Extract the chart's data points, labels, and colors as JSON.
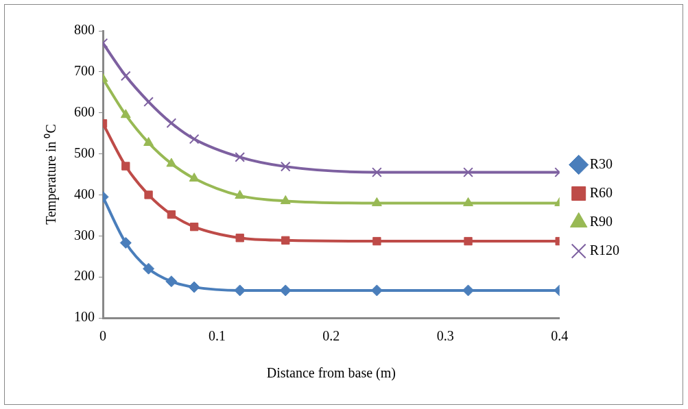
{
  "chart_data": {
    "type": "line",
    "xlabel": "Distance from base (m)",
    "ylabel": "Temperature in ⁰C",
    "x": [
      0,
      0.02,
      0.04,
      0.06,
      0.08,
      0.12,
      0.16,
      0.24,
      0.32,
      0.4
    ],
    "series": [
      {
        "name": "R30",
        "color": "#4a7ebb",
        "marker": "diamond",
        "values": [
          395,
          283,
          220,
          189,
          175,
          167,
          167,
          167,
          167,
          167
        ]
      },
      {
        "name": "R60",
        "color": "#be4b48",
        "marker": "square",
        "values": [
          574,
          470,
          400,
          352,
          322,
          295,
          289,
          287,
          287,
          287
        ]
      },
      {
        "name": "R90",
        "color": "#98b954",
        "marker": "triangle",
        "values": [
          683,
          595,
          527,
          476,
          440,
          398,
          385,
          380,
          380,
          380
        ]
      },
      {
        "name": "R120",
        "color": "#7d60a0",
        "marker": "cross",
        "values": [
          770,
          690,
          627,
          575,
          536,
          492,
          469,
          455,
          455,
          455
        ]
      }
    ],
    "xlim": [
      0,
      0.4
    ],
    "xticks": [
      0,
      0.1,
      0.2,
      0.3,
      0.4
    ],
    "ylim": [
      100,
      800
    ],
    "yticks": [
      100,
      200,
      300,
      400,
      500,
      600,
      700,
      800
    ],
    "grid": false,
    "legend": "right",
    "line_style": "solid"
  }
}
